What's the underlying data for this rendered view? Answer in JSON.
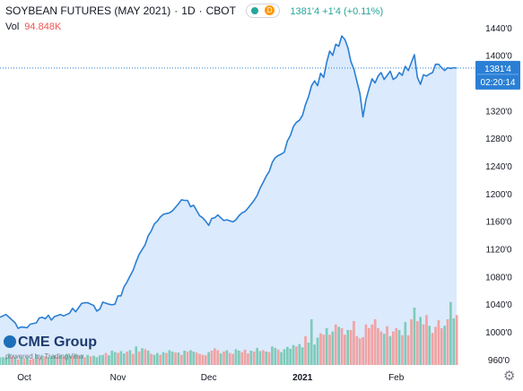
{
  "header": {
    "symbol": "SOYBEAN FUTURES (MAY 2021)",
    "interval": "1D",
    "exchange": "CBOT",
    "badge": "D",
    "ohlc_text": "1381'4  +1'4 (+0.11%)"
  },
  "volume": {
    "label": "Vol",
    "value": "94.848K"
  },
  "price_badge": {
    "price": "1381'4",
    "countdown": "02:20:14"
  },
  "branding": {
    "logo": "CME Group",
    "powered": "powered by TradingView"
  },
  "icons": {
    "settings": "gear-icon"
  },
  "colors": {
    "line": "#2a7fd4",
    "fill": "#cfe3fb",
    "up": "#7fcbb9",
    "down": "#f0a3a3",
    "axis_text": "#131722"
  },
  "chart_data": {
    "type": "line",
    "x_labels": [
      {
        "label": "Oct",
        "day": 8
      },
      {
        "label": "Nov",
        "day": 39
      },
      {
        "label": "Dec",
        "day": 69
      },
      {
        "label": "2021",
        "day": 100
      },
      {
        "label": "Feb",
        "day": 131
      }
    ],
    "y_ticks": [
      "960'0",
      "1000'0",
      "1040'0",
      "1080'0",
      "1120'0",
      "1160'0",
      "1200'0",
      "1240'0",
      "1280'0",
      "1320'0",
      "1360'0",
      "1400'0",
      "1440'0"
    ],
    "ylim": [
      952,
      1480
    ],
    "xlim": [
      0,
      156
    ],
    "last_price": 1381.5,
    "price_points": [
      [
        0,
        1021
      ],
      [
        2,
        1025
      ],
      [
        4,
        1017
      ],
      [
        5,
        1013
      ],
      [
        6,
        1005
      ],
      [
        7,
        1007
      ],
      [
        9,
        1006
      ],
      [
        10,
        1011
      ],
      [
        12,
        1013
      ],
      [
        13,
        1020
      ],
      [
        14,
        1021
      ],
      [
        15,
        1019
      ],
      [
        16,
        1024
      ],
      [
        17,
        1017
      ],
      [
        18,
        1022
      ],
      [
        20,
        1025
      ],
      [
        21,
        1023
      ],
      [
        23,
        1027
      ],
      [
        24,
        1034
      ],
      [
        25,
        1029
      ],
      [
        26,
        1035
      ],
      [
        27,
        1041
      ],
      [
        28,
        1042
      ],
      [
        29,
        1042
      ],
      [
        31,
        1038
      ],
      [
        32,
        1030
      ],
      [
        33,
        1033
      ],
      [
        34,
        1043
      ],
      [
        36,
        1040
      ],
      [
        37,
        1039
      ],
      [
        38,
        1040
      ],
      [
        39,
        1052
      ],
      [
        40,
        1052
      ],
      [
        41,
        1065
      ],
      [
        42,
        1072
      ],
      [
        43,
        1081
      ],
      [
        44,
        1089
      ],
      [
        45,
        1101
      ],
      [
        46,
        1112
      ],
      [
        48,
        1126
      ],
      [
        49,
        1139
      ],
      [
        50,
        1146
      ],
      [
        51,
        1156
      ],
      [
        52,
        1160
      ],
      [
        53,
        1166
      ],
      [
        54,
        1170
      ],
      [
        55,
        1171
      ],
      [
        56,
        1172
      ],
      [
        57,
        1175
      ],
      [
        59,
        1185
      ],
      [
        60,
        1191
      ],
      [
        61,
        1190
      ],
      [
        62,
        1190
      ],
      [
        63,
        1181
      ],
      [
        64,
        1183
      ],
      [
        66,
        1168
      ],
      [
        67,
        1165
      ],
      [
        68,
        1160
      ],
      [
        69,
        1154
      ],
      [
        70,
        1164
      ],
      [
        71,
        1165
      ],
      [
        72,
        1169
      ],
      [
        73,
        1165
      ],
      [
        74,
        1161
      ],
      [
        75,
        1162
      ],
      [
        77,
        1159
      ],
      [
        78,
        1162
      ],
      [
        79,
        1168
      ],
      [
        80,
        1172
      ],
      [
        81,
        1174
      ],
      [
        82,
        1179
      ],
      [
        84,
        1190
      ],
      [
        85,
        1197
      ],
      [
        86,
        1208
      ],
      [
        87,
        1216
      ],
      [
        88,
        1225
      ],
      [
        89,
        1232
      ],
      [
        90,
        1245
      ],
      [
        91,
        1252
      ],
      [
        92,
        1255
      ],
      [
        93,
        1257
      ],
      [
        94,
        1260
      ],
      [
        95,
        1276
      ],
      [
        96,
        1284
      ],
      [
        97,
        1297
      ],
      [
        98,
        1303
      ],
      [
        99,
        1306
      ],
      [
        100,
        1313
      ],
      [
        101,
        1329
      ],
      [
        102,
        1340
      ],
      [
        103,
        1356
      ],
      [
        104,
        1363
      ],
      [
        105,
        1356
      ],
      [
        106,
        1374
      ],
      [
        107,
        1368
      ],
      [
        108,
        1390
      ],
      [
        109,
        1406
      ],
      [
        110,
        1400
      ],
      [
        111,
        1416
      ],
      [
        112,
        1413
      ],
      [
        113,
        1428
      ],
      [
        114,
        1423
      ],
      [
        115,
        1411
      ],
      [
        116,
        1391
      ],
      [
        117,
        1380
      ],
      [
        118,
        1362
      ],
      [
        119,
        1345
      ],
      [
        120,
        1311
      ],
      [
        121,
        1336
      ],
      [
        122,
        1352
      ],
      [
        123,
        1366
      ],
      [
        124,
        1360
      ],
      [
        125,
        1370
      ],
      [
        126,
        1375
      ],
      [
        127,
        1365
      ],
      [
        128,
        1371
      ],
      [
        129,
        1377
      ],
      [
        130,
        1365
      ],
      [
        131,
        1368
      ],
      [
        132,
        1375
      ],
      [
        133,
        1371
      ],
      [
        134,
        1384
      ],
      [
        135,
        1378
      ],
      [
        137,
        1401
      ],
      [
        138,
        1368
      ],
      [
        139,
        1358
      ],
      [
        140,
        1372
      ],
      [
        141,
        1370
      ],
      [
        142,
        1373
      ],
      [
        143,
        1375
      ],
      [
        144,
        1387
      ],
      [
        145,
        1387
      ],
      [
        146,
        1382
      ],
      [
        147,
        1378
      ],
      [
        148,
        1382
      ],
      [
        149,
        1381
      ],
      [
        150,
        1382
      ],
      [
        151,
        1381.5
      ]
    ],
    "volume_bars": [
      [
        0,
        10.0,
        "up"
      ],
      [
        1,
        10.0,
        "up"
      ],
      [
        2,
        10.0,
        "up"
      ],
      [
        3,
        14.8,
        "up"
      ],
      [
        4,
        11.2,
        "down"
      ],
      [
        5,
        10.0,
        "up"
      ],
      [
        6,
        7.0,
        "down"
      ],
      [
        7,
        10.0,
        "up"
      ],
      [
        8,
        8.2,
        "down"
      ],
      [
        9,
        10.0,
        "up"
      ],
      [
        10,
        7.0,
        "down"
      ],
      [
        11,
        8.2,
        "down"
      ],
      [
        12,
        13.0,
        "up"
      ],
      [
        13,
        9.4,
        "down"
      ],
      [
        14,
        11.8,
        "up"
      ],
      [
        15,
        11.2,
        "down"
      ],
      [
        16,
        10.0,
        "up"
      ],
      [
        17,
        11.2,
        "up"
      ],
      [
        18,
        12.4,
        "up"
      ],
      [
        19,
        10.6,
        "down"
      ],
      [
        20,
        12.4,
        "up"
      ],
      [
        21,
        10.6,
        "down"
      ],
      [
        22,
        14.2,
        "up"
      ],
      [
        23,
        12.4,
        "up"
      ],
      [
        24,
        11.8,
        "down"
      ],
      [
        25,
        14.2,
        "up"
      ],
      [
        26,
        11.2,
        "down"
      ],
      [
        27,
        13.0,
        "up"
      ],
      [
        28,
        10.0,
        "down"
      ],
      [
        29,
        13.0,
        "up"
      ],
      [
        30,
        11.2,
        "down"
      ],
      [
        31,
        11.8,
        "up"
      ],
      [
        32,
        10.0,
        "up"
      ],
      [
        33,
        12.4,
        "up"
      ],
      [
        34,
        13.0,
        "up"
      ],
      [
        35,
        15.4,
        "down"
      ],
      [
        36,
        12.4,
        "up"
      ],
      [
        37,
        18.4,
        "up"
      ],
      [
        38,
        16.6,
        "up"
      ],
      [
        39,
        15.4,
        "down"
      ],
      [
        40,
        17.8,
        "up"
      ],
      [
        41,
        14.8,
        "up"
      ],
      [
        42,
        17.2,
        "down"
      ],
      [
        43,
        19.0,
        "up"
      ],
      [
        44,
        14.2,
        "down"
      ],
      [
        45,
        23.8,
        "up"
      ],
      [
        46,
        17.2,
        "down"
      ],
      [
        47,
        21.4,
        "up"
      ],
      [
        48,
        20.2,
        "down"
      ],
      [
        49,
        18.4,
        "up"
      ],
      [
        50,
        14.2,
        "down"
      ],
      [
        51,
        13.0,
        "up"
      ],
      [
        52,
        15.4,
        "up"
      ],
      [
        53,
        13.0,
        "down"
      ],
      [
        54,
        16.6,
        "up"
      ],
      [
        55,
        15.4,
        "down"
      ],
      [
        56,
        19.0,
        "up"
      ],
      [
        57,
        17.2,
        "up"
      ],
      [
        58,
        16.0,
        "down"
      ],
      [
        59,
        16.0,
        "up"
      ],
      [
        60,
        13.0,
        "down"
      ],
      [
        61,
        18.4,
        "up"
      ],
      [
        62,
        17.2,
        "down"
      ],
      [
        63,
        19.0,
        "up"
      ],
      [
        64,
        17.2,
        "up"
      ],
      [
        65,
        16.0,
        "down"
      ],
      [
        66,
        14.2,
        "down"
      ],
      [
        67,
        13.0,
        "down"
      ],
      [
        68,
        12.4,
        "down"
      ],
      [
        69,
        16.6,
        "up"
      ],
      [
        70,
        18.4,
        "down"
      ],
      [
        71,
        21.4,
        "down"
      ],
      [
        72,
        19.0,
        "down"
      ],
      [
        73,
        14.8,
        "up"
      ],
      [
        74,
        17.2,
        "down"
      ],
      [
        75,
        19.0,
        "up"
      ],
      [
        76,
        15.4,
        "down"
      ],
      [
        77,
        14.2,
        "down"
      ],
      [
        78,
        20.2,
        "up"
      ],
      [
        79,
        18.4,
        "up"
      ],
      [
        80,
        16.6,
        "down"
      ],
      [
        81,
        19.6,
        "down"
      ],
      [
        82,
        14.8,
        "down"
      ],
      [
        83,
        18.4,
        "up"
      ],
      [
        84,
        17.2,
        "down"
      ],
      [
        85,
        22.0,
        "up"
      ],
      [
        86,
        17.8,
        "up"
      ],
      [
        87,
        19.0,
        "down"
      ],
      [
        88,
        17.2,
        "up"
      ],
      [
        89,
        16.6,
        "down"
      ],
      [
        90,
        23.8,
        "up"
      ],
      [
        91,
        22.0,
        "up"
      ],
      [
        92,
        19.6,
        "down"
      ],
      [
        93,
        16.6,
        "up"
      ],
      [
        94,
        20.2,
        "up"
      ],
      [
        95,
        23.2,
        "up"
      ],
      [
        96,
        20.8,
        "up"
      ],
      [
        97,
        25.6,
        "up"
      ],
      [
        98,
        23.8,
        "down"
      ],
      [
        99,
        26.8,
        "up"
      ],
      [
        100,
        22.6,
        "up"
      ],
      [
        101,
        37.0,
        "down"
      ],
      [
        102,
        28.6,
        "up"
      ],
      [
        103,
        58.6,
        "up"
      ],
      [
        104,
        26.2,
        "up"
      ],
      [
        105,
        35.2,
        "up"
      ],
      [
        106,
        40.6,
        "down"
      ],
      [
        107,
        38.8,
        "down"
      ],
      [
        108,
        47.2,
        "up"
      ],
      [
        109,
        38.8,
        "down"
      ],
      [
        110,
        43.0,
        "up"
      ],
      [
        111,
        52.0,
        "down"
      ],
      [
        112,
        49.0,
        "up"
      ],
      [
        113,
        47.2,
        "down"
      ],
      [
        114,
        38.8,
        "down"
      ],
      [
        115,
        44.8,
        "up"
      ],
      [
        116,
        44.8,
        "down"
      ],
      [
        117,
        56.2,
        "down"
      ],
      [
        118,
        37.0,
        "down"
      ],
      [
        119,
        34.0,
        "down"
      ],
      [
        120,
        35.8,
        "down"
      ],
      [
        121,
        52.0,
        "down"
      ],
      [
        122,
        47.2,
        "down"
      ],
      [
        123,
        52.0,
        "down"
      ],
      [
        124,
        58.6,
        "down"
      ],
      [
        125,
        47.2,
        "down"
      ],
      [
        126,
        43.0,
        "down"
      ],
      [
        127,
        40.0,
        "up"
      ],
      [
        128,
        49.6,
        "down"
      ],
      [
        129,
        37.0,
        "up"
      ],
      [
        130,
        43.0,
        "down"
      ],
      [
        131,
        47.2,
        "down"
      ],
      [
        132,
        44.8,
        "up"
      ],
      [
        133,
        38.2,
        "down"
      ],
      [
        134,
        55.0,
        "up"
      ],
      [
        135,
        38.2,
        "down"
      ],
      [
        136,
        58.6,
        "down"
      ],
      [
        137,
        73.6,
        "up"
      ],
      [
        138,
        56.2,
        "down"
      ],
      [
        139,
        61.6,
        "up"
      ],
      [
        140,
        52.0,
        "down"
      ],
      [
        141,
        64.0,
        "down"
      ],
      [
        142,
        50.2,
        "up"
      ],
      [
        143,
        41.2,
        "down"
      ],
      [
        144,
        49.0,
        "down"
      ],
      [
        145,
        57.4,
        "down"
      ],
      [
        146,
        47.2,
        "down"
      ],
      [
        147,
        50.2,
        "up"
      ],
      [
        148,
        58.6,
        "down"
      ],
      [
        149,
        80.8,
        "up"
      ],
      [
        150,
        59.8,
        "up"
      ],
      [
        151,
        64.0,
        "down"
      ]
    ]
  }
}
